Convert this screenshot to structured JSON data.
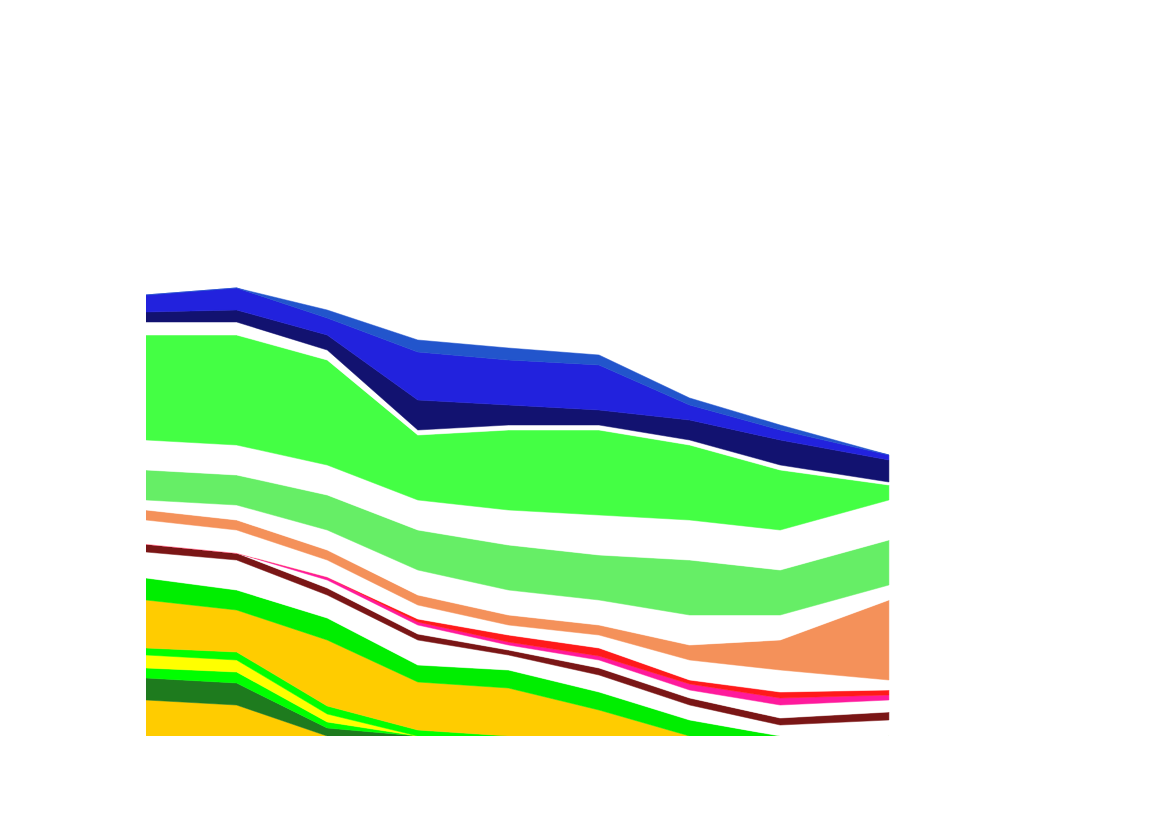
{
  "chart_data": {
    "type": "area",
    "stacked": true,
    "tick_labels": false,
    "x": [
      0,
      10,
      20,
      30,
      40,
      50,
      60,
      70,
      82
    ],
    "xlim": [
      0,
      100
    ],
    "ylim": [
      0,
      641
    ],
    "series": [
      {
        "color": "#ffcc00",
        "values": [
          36,
          31,
          0,
          0,
          0,
          0,
          0,
          0,
          0
        ]
      },
      {
        "color": "#1e7b1e",
        "values": [
          22,
          22,
          8,
          0,
          0,
          0,
          0,
          0,
          0
        ]
      },
      {
        "color": "#00ff00",
        "values": [
          10,
          11,
          6,
          0,
          0,
          0,
          0,
          0,
          0
        ]
      },
      {
        "color": "#ffff00",
        "values": [
          13,
          12,
          8,
          0,
          0,
          0,
          0,
          0,
          0
        ]
      },
      {
        "color": "#00ff00",
        "values": [
          7,
          8,
          8,
          6,
          0,
          0,
          0,
          0,
          0
        ]
      },
      {
        "color": "#ffcc00",
        "values": [
          48,
          42,
          66,
          48,
          48,
          26,
          0,
          0,
          0
        ]
      },
      {
        "color": "#00ee00",
        "values": [
          22,
          20,
          22,
          17,
          18,
          18,
          16,
          0,
          0
        ]
      },
      {
        "color": "#ffffff",
        "values": [
          26,
          30,
          23,
          25,
          15,
          17,
          15,
          11,
          16
        ]
      },
      {
        "color": "#7a1616",
        "values": [
          8,
          7,
          7,
          6,
          5,
          7,
          7,
          7,
          8
        ]
      },
      {
        "color": "#ffffff",
        "values": [
          0,
          0,
          8,
          9,
          5,
          8,
          8,
          13,
          12
        ]
      },
      {
        "color": "#ff1a9c",
        "values": [
          0,
          0,
          3,
          3,
          3,
          4,
          6,
          7,
          5
        ]
      },
      {
        "color": "#ff1a1a",
        "values": [
          0,
          0,
          0,
          3,
          7,
          8,
          4,
          6,
          5
        ]
      },
      {
        "color": "#ffffff",
        "values": [
          24,
          23,
          17,
          14,
          10,
          13,
          20,
          22,
          10
        ]
      },
      {
        "color": "#f4915a",
        "values": [
          10,
          10,
          10,
          10,
          10,
          10,
          15,
          30,
          80
        ]
      },
      {
        "color": "#ffffff",
        "values": [
          10,
          15,
          20,
          25,
          25,
          25,
          30,
          25,
          15
        ]
      },
      {
        "color": "#66ee66",
        "values": [
          30,
          30,
          35,
          40,
          45,
          45,
          55,
          45,
          45
        ]
      },
      {
        "color": "#ffffff",
        "values": [
          30,
          30,
          30,
          30,
          35,
          40,
          40,
          40,
          40
        ]
      },
      {
        "color": "#44ff44",
        "values": [
          105,
          110,
          105,
          65,
          80,
          85,
          75,
          60,
          15
        ]
      },
      {
        "color": "#ffffff",
        "values": [
          13,
          13,
          10,
          5,
          5,
          5,
          5,
          5,
          3
        ]
      },
      {
        "color": "#121270",
        "values": [
          10,
          12,
          15,
          30,
          20,
          15,
          20,
          25,
          22
        ]
      },
      {
        "color": "#2222dd",
        "values": [
          17,
          22,
          17,
          48,
          45,
          45,
          15,
          10,
          5
        ]
      },
      {
        "color": "#2255cc",
        "values": [
          0,
          0,
          8,
          12,
          12,
          10,
          7,
          5,
          0
        ]
      }
    ]
  }
}
